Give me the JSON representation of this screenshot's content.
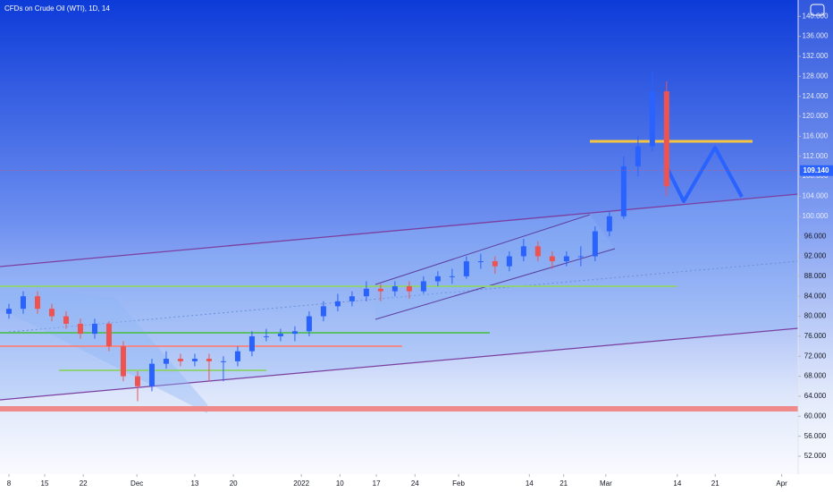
{
  "chart_data": {
    "type": "candlestick",
    "title": "CFDs on Crude Oil (WTI), 1D, 14",
    "x": [
      0,
      2,
      4,
      6,
      8,
      10,
      12,
      14,
      16,
      18,
      20,
      22,
      24,
      26,
      28,
      30,
      32,
      34,
      36,
      38,
      40,
      42,
      44,
      46,
      48,
      50,
      52,
      54,
      56,
      58,
      60,
      62,
      64,
      66,
      68,
      70,
      72,
      74,
      76,
      78,
      80,
      82,
      84,
      86,
      88,
      90,
      92
    ],
    "open": [
      80.5,
      81.5,
      84,
      81.5,
      80,
      78.5,
      76.5,
      78.5,
      74,
      68,
      66,
      70.5,
      71.5,
      71,
      71.5,
      71,
      71,
      73,
      76,
      76,
      76.5,
      77,
      80,
      82,
      83,
      84,
      85.5,
      85,
      86,
      85,
      87,
      88,
      88,
      91,
      91,
      90,
      92,
      94,
      92,
      91,
      92,
      92,
      97,
      100,
      110,
      114,
      125
    ],
    "high": [
      82.5,
      85,
      85,
      82.5,
      81,
      79.5,
      79.5,
      79,
      75,
      69,
      71.5,
      73,
      72.5,
      72.5,
      72.5,
      72,
      74,
      77,
      77.5,
      77.5,
      78,
      81,
      83,
      84.5,
      85,
      87,
      86.5,
      87,
      87,
      88,
      89,
      89.5,
      92,
      92.5,
      92,
      93,
      95.5,
      95,
      93,
      93,
      94,
      98,
      101,
      112,
      116,
      129,
      127
    ],
    "low": [
      79.5,
      80.5,
      80.5,
      79,
      77.5,
      75.5,
      75.5,
      73,
      67,
      63,
      65,
      69.5,
      70,
      70,
      67,
      67,
      70,
      72,
      75,
      75,
      75,
      76,
      79,
      81,
      82,
      83,
      83,
      84,
      83.5,
      84.5,
      86,
      86.5,
      87.5,
      89.5,
      88.5,
      89,
      91,
      91,
      89.5,
      90,
      90,
      91,
      96,
      99.5,
      108,
      113,
      104
    ],
    "close": [
      81.5,
      84,
      81.5,
      80,
      78.5,
      76.5,
      78.5,
      74,
      68,
      66,
      70.5,
      71.5,
      71,
      71.5,
      71,
      71,
      73,
      76,
      76,
      76.5,
      77,
      80,
      82,
      83,
      84,
      85.5,
      85,
      86,
      85,
      87,
      88,
      88,
      91,
      91,
      90,
      92,
      94,
      92,
      91,
      92,
      92,
      97,
      100,
      110,
      114,
      125,
      106
    ],
    "up_color": "#2962ff",
    "down_color": "#ef5350",
    "last_price": {
      "value": 109.14,
      "label": "109.140"
    },
    "xlim": [
      -1.25,
      110.4
    ],
    "xticks": [
      {
        "value": 0,
        "label": "8"
      },
      {
        "value": 5,
        "label": "15"
      },
      {
        "value": 10.4,
        "label": "22"
      },
      {
        "value": 17.9,
        "label": "Dec"
      },
      {
        "value": 26,
        "label": "13"
      },
      {
        "value": 31.4,
        "label": "20"
      },
      {
        "value": 40.9,
        "label": "2022"
      },
      {
        "value": 46.3,
        "label": "10"
      },
      {
        "value": 51.4,
        "label": "17"
      },
      {
        "value": 56.8,
        "label": "24"
      },
      {
        "value": 62.9,
        "label": "Feb"
      },
      {
        "value": 72.8,
        "label": "14"
      },
      {
        "value": 77.6,
        "label": "21"
      },
      {
        "value": 83.5,
        "label": "Mar"
      },
      {
        "value": 93.5,
        "label": "14"
      },
      {
        "value": 98.8,
        "label": "21"
      },
      {
        "value": 108.1,
        "label": "Apr"
      }
    ],
    "ylim": [
      47.35,
      143.27
    ],
    "yticks": [
      {
        "value": 52,
        "label": "52.000"
      },
      {
        "value": 56,
        "label": "56.000"
      },
      {
        "value": 60,
        "label": "60.000"
      },
      {
        "value": 64,
        "label": "64.000"
      },
      {
        "value": 68,
        "label": "68.000"
      },
      {
        "value": 72,
        "label": "72.000"
      },
      {
        "value": 76,
        "label": "76.000"
      },
      {
        "value": 80,
        "label": "80.000"
      },
      {
        "value": 84,
        "label": "84.000"
      },
      {
        "value": 88,
        "label": "88.000"
      },
      {
        "value": 92,
        "label": "92.000"
      },
      {
        "value": 96,
        "label": "96.000"
      },
      {
        "value": 100,
        "label": "100.000"
      },
      {
        "value": 104,
        "label": "104.000"
      },
      {
        "value": 108,
        "label": "108.000"
      },
      {
        "value": 112,
        "label": "112.000"
      },
      {
        "value": 116,
        "label": "116.000"
      },
      {
        "value": 120,
        "label": "120.000"
      },
      {
        "value": 124,
        "label": "124.000"
      },
      {
        "value": 128,
        "label": "128.000"
      },
      {
        "value": 132,
        "label": "132.000"
      },
      {
        "value": 136,
        "label": "136.000"
      },
      {
        "value": 140,
        "label": "140.000"
      }
    ]
  }
}
